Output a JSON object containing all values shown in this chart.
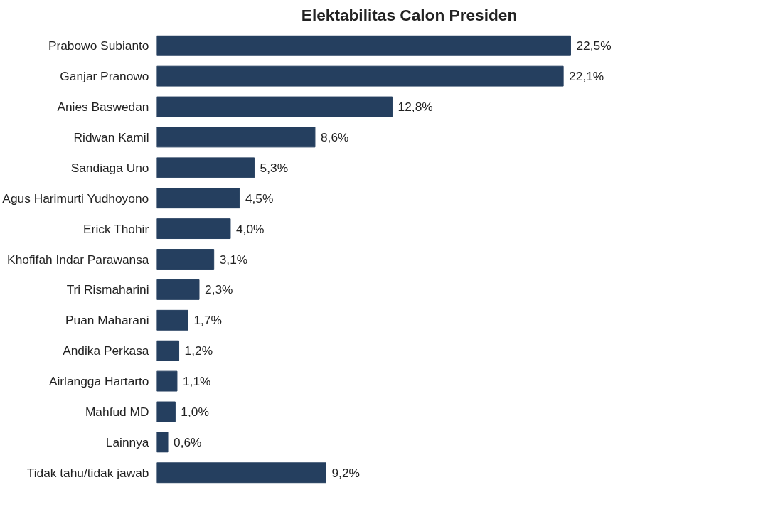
{
  "chart_data": {
    "type": "bar",
    "orientation": "horizontal",
    "title": "Elektabilitas Calon Presiden",
    "categories": [
      "Prabowo Subianto",
      "Ganjar Pranowo",
      "Anies Baswedan",
      "Ridwan Kamil",
      "Sandiaga Uno",
      "Agus Harimurti Yudhoyono",
      "Erick Thohir",
      "Khofifah Indar Parawansa",
      "Tri Rismaharini",
      "Puan Maharani",
      "Andika Perkasa",
      "Airlangga Hartarto",
      "Mahfud MD",
      "Lainnya",
      "Tidak tahu/tidak jawab"
    ],
    "values": [
      22.5,
      22.1,
      12.8,
      8.6,
      5.3,
      4.5,
      4.0,
      3.1,
      2.3,
      1.7,
      1.2,
      1.1,
      1.0,
      0.6,
      9.2
    ],
    "value_labels": [
      "22,5%",
      "22,1%",
      "12,8%",
      "8,6%",
      "5,3%",
      "4,5%",
      "4,0%",
      "3,1%",
      "2,3%",
      "1,7%",
      "1,2%",
      "1,1%",
      "1,0%",
      "0,6%",
      "9,2%"
    ],
    "color": "#253f5f",
    "grid": false,
    "tick_labels": "y"
  }
}
